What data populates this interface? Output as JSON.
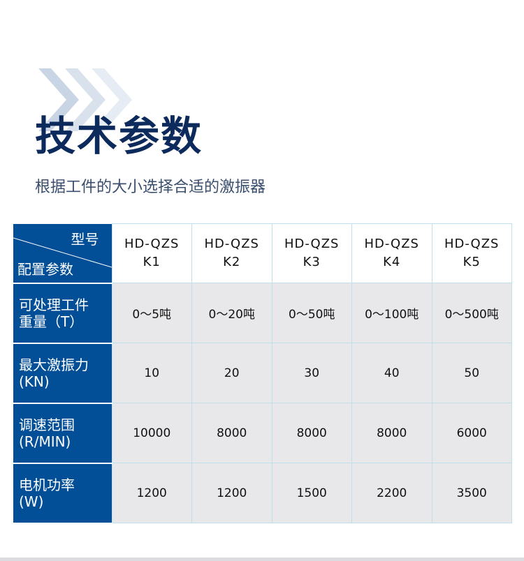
{
  "header": {
    "title": "技术参数",
    "subtitle": "根据工件的大小选择合适的激振器"
  },
  "colors": {
    "accent": "#034f97",
    "title": "#0c2a5c",
    "cell_bg": "#e8e8ea",
    "border": "#bfe0ea"
  },
  "table": {
    "corner_top": "型号",
    "corner_bottom": "配置参数",
    "models": [
      {
        "line1": "HD-QZS",
        "line2": "K1"
      },
      {
        "line1": "HD-QZS",
        "line2": "K2"
      },
      {
        "line1": "HD-QZS",
        "line2": "K3"
      },
      {
        "line1": "HD-QZS",
        "line2": "K4"
      },
      {
        "line1": "HD-QZS",
        "line2": "K5"
      }
    ],
    "rows": [
      {
        "label1": "可处理工件",
        "label2": "重量（T）",
        "values": [
          "0～5吨",
          "0～20吨",
          "0～50吨",
          "0～100吨",
          "0～500吨"
        ]
      },
      {
        "label1": "最大激振力",
        "label2": "(KN)",
        "values": [
          "10",
          "20",
          "30",
          "40",
          "50"
        ]
      },
      {
        "label1": "调速范围",
        "label2": "(R/MIN)",
        "values": [
          "10000",
          "8000",
          "8000",
          "8000",
          "6000"
        ]
      },
      {
        "label1": "电机功率",
        "label2": "(W)",
        "values": [
          "1200",
          "1200",
          "1500",
          "2200",
          "3500"
        ]
      }
    ]
  }
}
